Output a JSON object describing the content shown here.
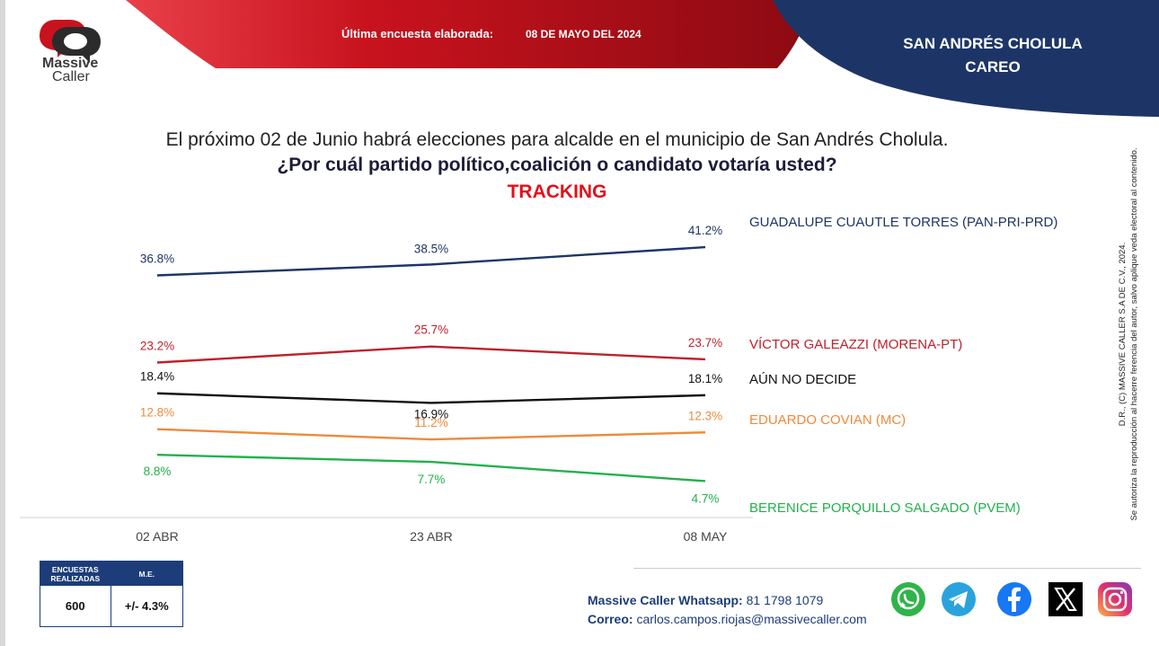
{
  "header": {
    "brand_name": "Massive",
    "brand_sub": "Caller",
    "banner_label": "Última encuesta elaborada:",
    "banner_date": "08 DE MAYO DEL 2024",
    "place_line1": "SAN ANDRÉS CHOLULA",
    "place_line2": "CAREO",
    "colors": {
      "red": "#c8131e",
      "navy": "#1d3566"
    }
  },
  "question": {
    "line1": "El próximo 02 de Junio habrá elecciones para alcalde en el municipio de San Andrés Cholula.",
    "line2": "¿Por cuál partido político,coalición o candidato votaría usted?",
    "line3": "TRACKING"
  },
  "chart_data": {
    "type": "line",
    "title": "TRACKING",
    "categories": [
      "02 ABR",
      "23 ABR",
      "08 MAY"
    ],
    "ylim": [
      0,
      45
    ],
    "grid": false,
    "legend": "right",
    "series": [
      {
        "name": "GUADALUPE CUAUTLE TORRES (PAN-PRI-PRD)",
        "values": [
          36.8,
          38.5,
          41.2
        ],
        "labels": [
          "36.8%",
          "38.5%",
          "41.2%"
        ],
        "color": "#1d3566"
      },
      {
        "name": "VÍCTOR GALEAZZI (MORENA-PT)",
        "values": [
          23.2,
          25.7,
          23.7
        ],
        "labels": [
          "23.2%",
          "25.7%",
          "23.7%"
        ],
        "color": "#c0202a"
      },
      {
        "name": "AÚN NO DECIDE",
        "values": [
          18.4,
          16.9,
          18.1
        ],
        "labels": [
          "18.4%",
          "16.9%",
          "18.1%"
        ],
        "color": "#111111"
      },
      {
        "name": "EDUARDO COVIAN (MC)",
        "values": [
          12.8,
          11.2,
          12.3
        ],
        "labels": [
          "12.8%",
          "11.2%",
          "12.3%"
        ],
        "color": "#ee8a3c"
      },
      {
        "name": "BERENICE PORQUILLO SALGADO (PVEM)",
        "values": [
          8.8,
          7.7,
          4.7
        ],
        "labels": [
          "8.8%",
          "7.7%",
          "4.7%"
        ],
        "color": "#22b14c"
      }
    ]
  },
  "stats": {
    "h1": "ENCUESTAS REALIZADAS",
    "h2": "M.E.",
    "v1": "600",
    "v2": "+/- 4.3%"
  },
  "side_note": {
    "line1": "D.R., (C) MASSIVE CALLER S.A DE C.V., 2024.",
    "line2": "Se autoriza la reproducción al hacerre ferencia del autor, salvo aplique veda electoral al contenido."
  },
  "contact": {
    "wa_label": "Massive Caller Whatsapp:",
    "wa_number": "81 1798 1079",
    "mail_label": "Correo:",
    "mail": "carlos.campos.riojas@massivecaller.com"
  },
  "social": [
    "whatsapp-icon",
    "telegram-icon",
    "facebook-icon",
    "x-icon",
    "instagram-icon"
  ]
}
